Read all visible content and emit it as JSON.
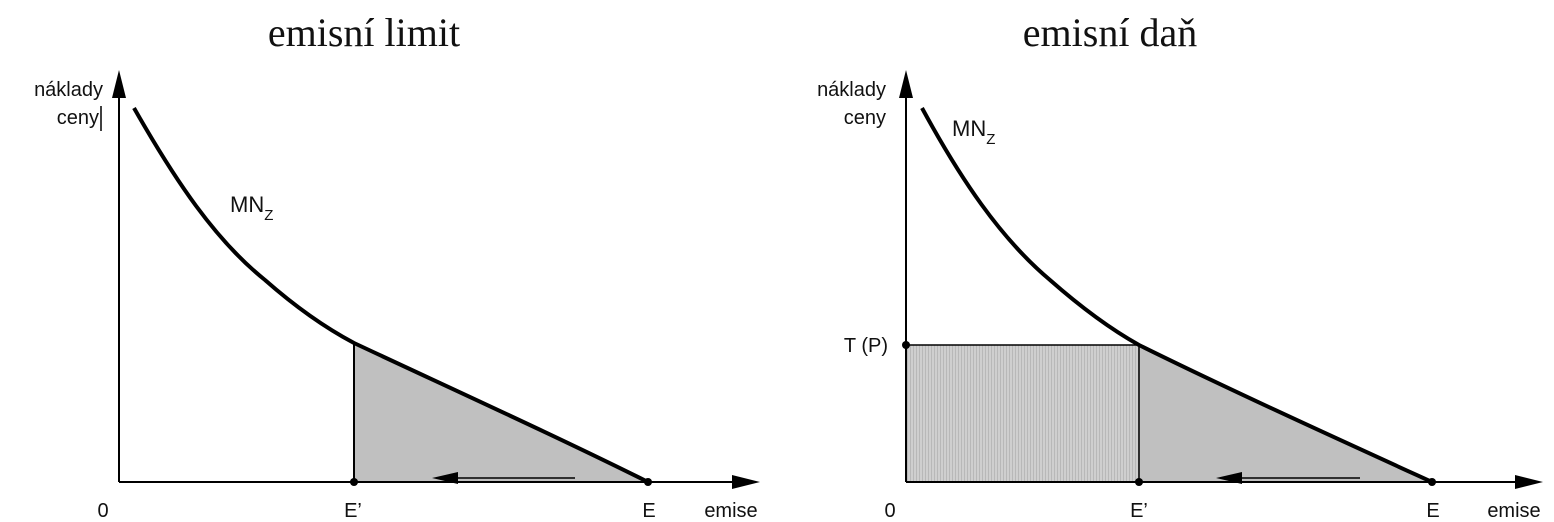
{
  "colors": {
    "ink": "#000000",
    "shade": "#c0c0c0",
    "tax_shade": "#cccccc"
  },
  "panels": [
    {
      "title": "emisní limit",
      "y_axis_label_1": "náklady",
      "y_axis_label_2": "ceny",
      "x_axis_label": "emise",
      "origin_label": "0",
      "curve_label_main": "MN",
      "curve_label_sub": "Z",
      "e_prime_label": "E’",
      "e_label": "E",
      "arrow_direction": "left"
    },
    {
      "title": "emisní daň",
      "y_axis_label_1": "náklady",
      "y_axis_label_2": "ceny",
      "x_axis_label": "emise",
      "origin_label": "0",
      "curve_label_main": "MN",
      "curve_label_sub": "Z",
      "tax_label": "T (P)",
      "e_prime_label": "E’",
      "e_label": "E",
      "arrow_direction": "left"
    }
  ]
}
